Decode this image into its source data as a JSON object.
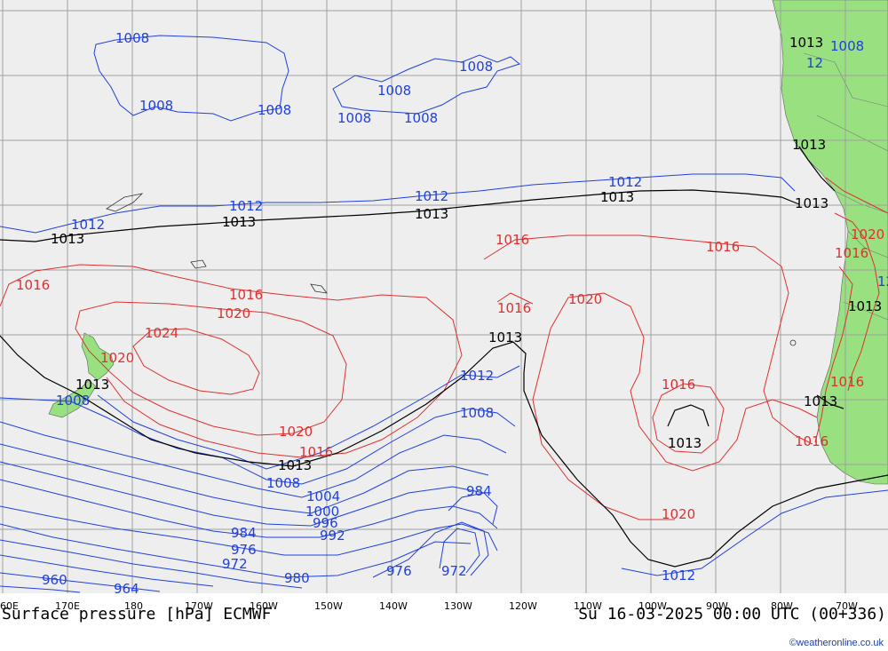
{
  "footer": {
    "title": "Surface pressure [hPa] ECMWF",
    "datetime": "Su 16-03-2025 00:00 UTC (00+336)",
    "credit": "©weatheronline.co.uk"
  },
  "longitude_ticks": [
    "60E",
    "170E",
    "180",
    "170W",
    "160W",
    "150W",
    "140W",
    "130W",
    "120W",
    "110W",
    "100W",
    "90W",
    "80W",
    "70W"
  ],
  "colors": {
    "ocean": "#eeeeee",
    "land": "#98e080",
    "isobar_low": "#2040e0",
    "isobar_high": "#e03030",
    "isobar_ref": "#000000",
    "grid": "#a0a0a0"
  },
  "labels": {
    "l1": "1008",
    "l2": "1008",
    "l3": "1008",
    "l4": "1008",
    "l5": "1008",
    "l6": "1008",
    "l7": "1008",
    "l8": "1013",
    "l9": "1008",
    "l10": "1012",
    "l11": "1013",
    "l12": "1013",
    "l13": "1012",
    "l14": "1012",
    "l15": "1013",
    "l16": "1012",
    "l17": "1013",
    "l18": "1012",
    "l19": "1013",
    "l20": "1012",
    "l21": "1013",
    "l22": "1016",
    "l23": "1016",
    "l24": "1016",
    "l25": "1020",
    "l26": "1024",
    "l27": "1020",
    "l28": "1013",
    "l29": "1008",
    "l30": "1016",
    "l31": "1020",
    "l32": "1013",
    "l33": "1012",
    "l34": "1020",
    "l35": "1016",
    "l36": "1013",
    "l37": "1013",
    "l38": "1016",
    "l39": "1016",
    "l40": "1020",
    "l41": "1016",
    "l42": "1013",
    "l43": "1013",
    "l44": "1008",
    "l45": "1013",
    "l46": "1008",
    "l47": "1004",
    "l48": "1000",
    "l49": "996",
    "l50": "992",
    "l51": "984",
    "l52": "984",
    "l53": "976",
    "l54": "972",
    "l55": "980",
    "l56": "976",
    "l57": "972",
    "l58": "960",
    "l59": "964",
    "l60": "1020",
    "l61": "1012",
    "l62": "1020",
    "l63": "1016",
    "l64": "12",
    "l65": "12",
    "l66": "1016"
  }
}
